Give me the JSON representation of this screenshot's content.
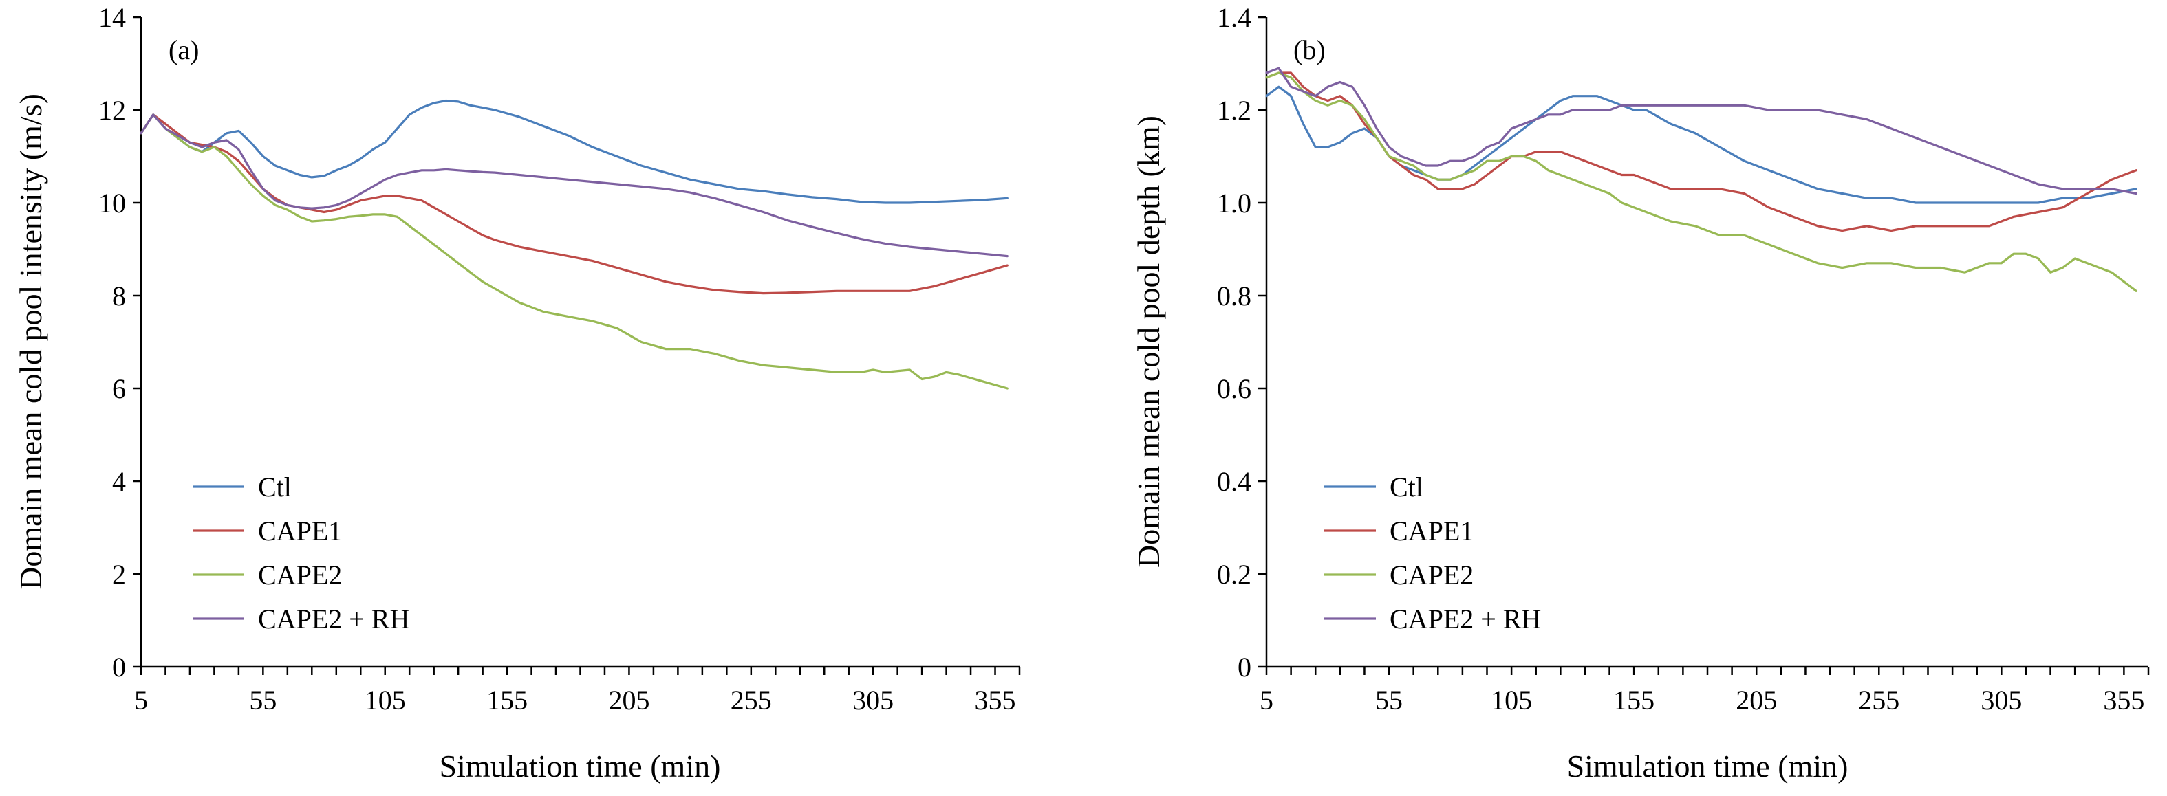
{
  "colors": {
    "Ctl": "#4a7ebb",
    "CAPE1": "#be4b48",
    "CAPE2": "#98b954",
    "CAPE2 + RH": "#7d60a0"
  },
  "chart_data": [
    {
      "type": "line",
      "panel_label": "(a)",
      "title": "",
      "xlabel": "Simulation time (min)",
      "ylabel": "Domain mean cold pool intensity (m/s)",
      "xlim": [
        5,
        365
      ],
      "ylim": [
        0,
        14
      ],
      "xticks": [
        5,
        55,
        105,
        155,
        205,
        255,
        305,
        355
      ],
      "yticks": [
        0,
        2,
        4,
        6,
        8,
        10,
        12,
        14
      ],
      "ytick_labels": [
        "0",
        "2",
        "4",
        "6",
        "8",
        "10",
        "12",
        "14"
      ],
      "legend": "lower-left",
      "series": [
        {
          "name": "Ctl",
          "x": [
            5,
            10,
            15,
            20,
            25,
            30,
            35,
            40,
            45,
            50,
            55,
            60,
            65,
            70,
            75,
            80,
            85,
            90,
            95,
            100,
            105,
            110,
            115,
            120,
            125,
            130,
            135,
            140,
            145,
            150,
            160,
            170,
            180,
            190,
            200,
            210,
            220,
            230,
            240,
            250,
            260,
            270,
            280,
            290,
            300,
            310,
            320,
            330,
            340,
            350,
            360
          ],
          "y": [
            11.5,
            11.9,
            11.6,
            11.4,
            11.2,
            11.1,
            11.3,
            11.5,
            11.55,
            11.3,
            11.0,
            10.8,
            10.7,
            10.6,
            10.55,
            10.58,
            10.7,
            10.8,
            10.95,
            11.15,
            11.3,
            11.6,
            11.9,
            12.05,
            12.15,
            12.2,
            12.18,
            12.1,
            12.05,
            12.0,
            11.85,
            11.65,
            11.45,
            11.2,
            11.0,
            10.8,
            10.65,
            10.5,
            10.4,
            10.3,
            10.25,
            10.18,
            10.12,
            10.08,
            10.02,
            10.0,
            10.0,
            10.02,
            10.04,
            10.06,
            10.1
          ]
        },
        {
          "name": "CAPE1",
          "x": [
            5,
            10,
            15,
            20,
            25,
            30,
            35,
            40,
            45,
            50,
            55,
            60,
            65,
            70,
            75,
            80,
            85,
            90,
            95,
            100,
            105,
            110,
            115,
            120,
            125,
            130,
            135,
            140,
            145,
            150,
            160,
            170,
            180,
            190,
            200,
            210,
            220,
            230,
            240,
            250,
            260,
            270,
            280,
            290,
            300,
            310,
            320,
            330,
            340,
            350,
            360
          ],
          "y": [
            11.5,
            11.9,
            11.7,
            11.5,
            11.3,
            11.25,
            11.2,
            11.1,
            10.9,
            10.6,
            10.3,
            10.1,
            9.95,
            9.9,
            9.85,
            9.8,
            9.85,
            9.95,
            10.05,
            10.1,
            10.15,
            10.15,
            10.1,
            10.05,
            9.9,
            9.75,
            9.6,
            9.45,
            9.3,
            9.2,
            9.05,
            8.95,
            8.85,
            8.75,
            8.6,
            8.45,
            8.3,
            8.2,
            8.12,
            8.08,
            8.05,
            8.06,
            8.08,
            8.1,
            8.1,
            8.1,
            8.1,
            8.2,
            8.35,
            8.5,
            8.65
          ]
        },
        {
          "name": "CAPE2",
          "x": [
            5,
            10,
            15,
            20,
            25,
            30,
            35,
            40,
            45,
            50,
            55,
            60,
            65,
            70,
            75,
            80,
            85,
            90,
            95,
            100,
            105,
            110,
            115,
            120,
            125,
            130,
            135,
            140,
            145,
            150,
            160,
            170,
            180,
            190,
            200,
            210,
            220,
            230,
            240,
            250,
            260,
            270,
            280,
            290,
            300,
            305,
            310,
            320,
            325,
            330,
            335,
            340,
            350,
            360
          ],
          "y": [
            11.5,
            11.9,
            11.6,
            11.4,
            11.2,
            11.1,
            11.2,
            11.0,
            10.7,
            10.4,
            10.15,
            9.95,
            9.85,
            9.7,
            9.6,
            9.62,
            9.65,
            9.7,
            9.72,
            9.75,
            9.75,
            9.7,
            9.5,
            9.3,
            9.1,
            8.9,
            8.7,
            8.5,
            8.3,
            8.15,
            7.85,
            7.65,
            7.55,
            7.45,
            7.3,
            7.0,
            6.85,
            6.85,
            6.75,
            6.6,
            6.5,
            6.45,
            6.4,
            6.35,
            6.35,
            6.4,
            6.35,
            6.4,
            6.2,
            6.25,
            6.35,
            6.3,
            6.15,
            6.0
          ]
        },
        {
          "name": "CAPE2 + RH",
          "x": [
            5,
            10,
            15,
            20,
            25,
            30,
            35,
            40,
            45,
            50,
            55,
            60,
            65,
            70,
            75,
            80,
            85,
            90,
            95,
            100,
            105,
            110,
            115,
            120,
            125,
            130,
            135,
            140,
            145,
            150,
            160,
            170,
            180,
            190,
            200,
            210,
            220,
            230,
            240,
            250,
            260,
            270,
            280,
            290,
            300,
            310,
            320,
            330,
            340,
            350,
            360
          ],
          "y": [
            11.5,
            11.9,
            11.6,
            11.45,
            11.3,
            11.2,
            11.3,
            11.35,
            11.15,
            10.7,
            10.3,
            10.05,
            9.95,
            9.9,
            9.88,
            9.9,
            9.95,
            10.05,
            10.2,
            10.35,
            10.5,
            10.6,
            10.65,
            10.7,
            10.7,
            10.72,
            10.7,
            10.68,
            10.66,
            10.65,
            10.6,
            10.55,
            10.5,
            10.45,
            10.4,
            10.35,
            10.3,
            10.22,
            10.1,
            9.95,
            9.8,
            9.62,
            9.48,
            9.35,
            9.22,
            9.12,
            9.05,
            9.0,
            8.95,
            8.9,
            8.85
          ]
        }
      ]
    },
    {
      "type": "line",
      "panel_label": "(b)",
      "title": "",
      "xlabel": "Simulation time (min)",
      "ylabel": "Domain mean cold pool depth (km)",
      "xlim": [
        5,
        365
      ],
      "ylim": [
        0,
        1.4
      ],
      "xticks": [
        5,
        55,
        105,
        155,
        205,
        255,
        305,
        355
      ],
      "yticks": [
        0,
        0.2,
        0.4,
        0.6,
        0.8,
        1.0,
        1.2,
        1.4
      ],
      "ytick_labels": [
        "0",
        "0.2",
        "0.4",
        "0.6",
        "0.8",
        "1.0",
        "1.2",
        "1.4"
      ],
      "legend": "lower-left",
      "series": [
        {
          "name": "Ctl",
          "x": [
            5,
            10,
            15,
            20,
            25,
            30,
            35,
            40,
            45,
            50,
            55,
            60,
            65,
            70,
            75,
            80,
            85,
            90,
            95,
            100,
            105,
            110,
            115,
            120,
            125,
            130,
            135,
            140,
            145,
            150,
            155,
            160,
            170,
            180,
            190,
            200,
            210,
            220,
            230,
            240,
            250,
            260,
            270,
            280,
            290,
            300,
            310,
            320,
            330,
            340,
            350,
            360
          ],
          "y": [
            1.23,
            1.25,
            1.23,
            1.17,
            1.12,
            1.12,
            1.13,
            1.15,
            1.16,
            1.14,
            1.1,
            1.08,
            1.07,
            1.06,
            1.05,
            1.05,
            1.06,
            1.08,
            1.1,
            1.12,
            1.14,
            1.16,
            1.18,
            1.2,
            1.22,
            1.23,
            1.23,
            1.23,
            1.22,
            1.21,
            1.2,
            1.2,
            1.17,
            1.15,
            1.12,
            1.09,
            1.07,
            1.05,
            1.03,
            1.02,
            1.01,
            1.01,
            1.0,
            1.0,
            1.0,
            1.0,
            1.0,
            1.0,
            1.01,
            1.01,
            1.02,
            1.03
          ]
        },
        {
          "name": "CAPE1",
          "x": [
            5,
            10,
            15,
            20,
            25,
            30,
            35,
            40,
            45,
            50,
            55,
            60,
            65,
            70,
            75,
            80,
            85,
            90,
            95,
            100,
            105,
            110,
            115,
            120,
            125,
            130,
            135,
            140,
            145,
            150,
            155,
            160,
            170,
            180,
            190,
            200,
            210,
            220,
            230,
            240,
            250,
            260,
            270,
            280,
            290,
            300,
            310,
            320,
            330,
            340,
            350,
            360
          ],
          "y": [
            1.27,
            1.28,
            1.28,
            1.25,
            1.23,
            1.22,
            1.23,
            1.21,
            1.17,
            1.14,
            1.1,
            1.08,
            1.06,
            1.05,
            1.03,
            1.03,
            1.03,
            1.04,
            1.06,
            1.08,
            1.1,
            1.1,
            1.11,
            1.11,
            1.11,
            1.1,
            1.09,
            1.08,
            1.07,
            1.06,
            1.06,
            1.05,
            1.03,
            1.03,
            1.03,
            1.02,
            0.99,
            0.97,
            0.95,
            0.94,
            0.95,
            0.94,
            0.95,
            0.95,
            0.95,
            0.95,
            0.97,
            0.98,
            0.99,
            1.02,
            1.05,
            1.07
          ]
        },
        {
          "name": "CAPE2",
          "x": [
            5,
            10,
            15,
            20,
            25,
            30,
            35,
            40,
            45,
            50,
            55,
            60,
            65,
            70,
            75,
            80,
            85,
            90,
            95,
            100,
            105,
            110,
            115,
            120,
            125,
            130,
            135,
            140,
            145,
            150,
            155,
            160,
            170,
            180,
            190,
            200,
            210,
            220,
            230,
            240,
            250,
            260,
            270,
            280,
            290,
            300,
            305,
            310,
            315,
            320,
            325,
            330,
            335,
            340,
            350,
            360
          ],
          "y": [
            1.27,
            1.28,
            1.27,
            1.24,
            1.22,
            1.21,
            1.22,
            1.21,
            1.18,
            1.14,
            1.1,
            1.09,
            1.08,
            1.06,
            1.05,
            1.05,
            1.06,
            1.07,
            1.09,
            1.09,
            1.1,
            1.1,
            1.09,
            1.07,
            1.06,
            1.05,
            1.04,
            1.03,
            1.02,
            1.0,
            0.99,
            0.98,
            0.96,
            0.95,
            0.93,
            0.93,
            0.91,
            0.89,
            0.87,
            0.86,
            0.87,
            0.87,
            0.86,
            0.86,
            0.85,
            0.87,
            0.87,
            0.89,
            0.89,
            0.88,
            0.85,
            0.86,
            0.88,
            0.87,
            0.85,
            0.81
          ]
        },
        {
          "name": "CAPE2 + RH",
          "x": [
            5,
            10,
            15,
            20,
            25,
            30,
            35,
            40,
            45,
            50,
            55,
            60,
            65,
            70,
            75,
            80,
            85,
            90,
            95,
            100,
            105,
            110,
            115,
            120,
            125,
            130,
            135,
            140,
            145,
            150,
            155,
            160,
            170,
            180,
            190,
            200,
            210,
            220,
            230,
            240,
            250,
            260,
            270,
            280,
            290,
            300,
            310,
            320,
            330,
            340,
            350,
            360
          ],
          "y": [
            1.28,
            1.29,
            1.25,
            1.24,
            1.23,
            1.25,
            1.26,
            1.25,
            1.21,
            1.16,
            1.12,
            1.1,
            1.09,
            1.08,
            1.08,
            1.09,
            1.09,
            1.1,
            1.12,
            1.13,
            1.16,
            1.17,
            1.18,
            1.19,
            1.19,
            1.2,
            1.2,
            1.2,
            1.2,
            1.21,
            1.21,
            1.21,
            1.21,
            1.21,
            1.21,
            1.21,
            1.2,
            1.2,
            1.2,
            1.19,
            1.18,
            1.16,
            1.14,
            1.12,
            1.1,
            1.08,
            1.06,
            1.04,
            1.03,
            1.03,
            1.03,
            1.02
          ]
        }
      ]
    }
  ]
}
